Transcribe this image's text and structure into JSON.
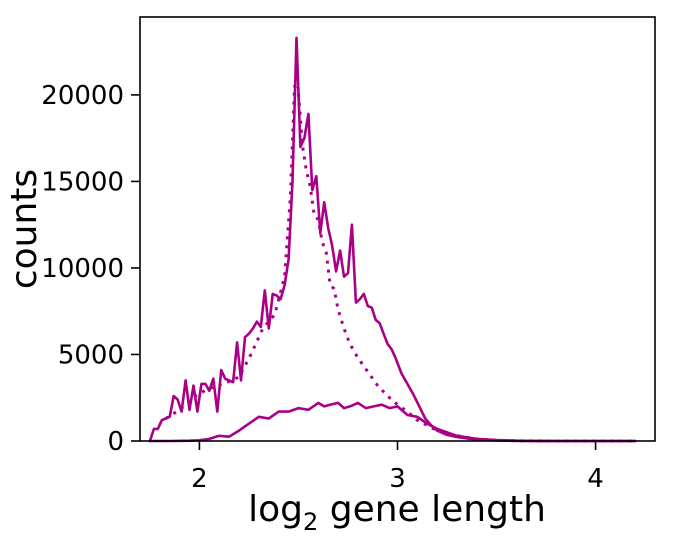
{
  "chart_data": {
    "type": "line",
    "title": "",
    "xlabel": {
      "main": "log",
      "sub": "2",
      "rest": " gene length"
    },
    "ylabel": "counts",
    "xlim": [
      1.7,
      4.3
    ],
    "ylim": [
      0,
      24500
    ],
    "xticks": [
      2,
      3,
      4
    ],
    "yticks": [
      0,
      5000,
      10000,
      15000,
      20000
    ],
    "grid": false,
    "legend": "none",
    "color": "#aa0088",
    "series": [
      {
        "style": "solid",
        "x": [
          1.75,
          1.77,
          1.79,
          1.81,
          1.83,
          1.85,
          1.87,
          1.89,
          1.91,
          1.93,
          1.95,
          1.97,
          1.99,
          2.01,
          2.03,
          2.05,
          2.07,
          2.09,
          2.11,
          2.13,
          2.15,
          2.17,
          2.19,
          2.21,
          2.23,
          2.25,
          2.27,
          2.29,
          2.31,
          2.33,
          2.35,
          2.37,
          2.39,
          2.41,
          2.43,
          2.45,
          2.47,
          2.49,
          2.51,
          2.53,
          2.55,
          2.57,
          2.59,
          2.61,
          2.63,
          2.65,
          2.67,
          2.69,
          2.71,
          2.73,
          2.75,
          2.77,
          2.79,
          2.81,
          2.83,
          2.85,
          2.87,
          2.89,
          2.91,
          2.93,
          2.95,
          2.97,
          2.99,
          3.02,
          3.05,
          3.08,
          3.11,
          3.14,
          3.17,
          3.2,
          3.25,
          3.3,
          3.35,
          3.4,
          3.45,
          3.5,
          3.6,
          3.7,
          3.8,
          4.0,
          4.2
        ],
        "y": [
          0,
          700,
          700,
          1200,
          1300,
          1400,
          2600,
          2400,
          1700,
          3500,
          1800,
          3200,
          1700,
          3300,
          3300,
          2900,
          3600,
          1700,
          4100,
          3600,
          3500,
          3400,
          5700,
          3500,
          6000,
          6200,
          6500,
          6900,
          6600,
          8700,
          6500,
          8500,
          8400,
          8200,
          9000,
          10500,
          15000,
          23300,
          17000,
          17500,
          18900,
          14500,
          15300,
          12000,
          13800,
          12300,
          11300,
          9800,
          11000,
          9500,
          9700,
          12500,
          8000,
          8200,
          8500,
          7800,
          7700,
          7000,
          6800,
          6200,
          5600,
          5300,
          4800,
          3900,
          3300,
          2700,
          2000,
          1300,
          900,
          600,
          350,
          230,
          150,
          90,
          50,
          30,
          10,
          5,
          2,
          0,
          0
        ]
      },
      {
        "style": "dotted",
        "x": [
          1.83,
          1.9,
          1.98,
          2.04,
          2.12,
          2.2,
          2.26,
          2.32,
          2.38,
          2.43,
          2.46,
          2.48,
          2.5,
          2.52,
          2.54,
          2.56,
          2.58,
          2.6,
          2.62,
          2.64,
          2.66,
          2.68,
          2.7,
          2.73,
          2.76,
          2.8,
          2.85,
          2.9,
          2.95,
          3.0,
          3.05,
          3.1,
          3.15,
          3.2,
          3.3,
          3.4,
          3.5,
          3.6,
          3.7,
          3.8,
          4.0,
          4.2
        ],
        "y": [
          1300,
          1800,
          2600,
          3000,
          3300,
          3700,
          5000,
          6500,
          7300,
          9500,
          14200,
          20500,
          20100,
          17100,
          15600,
          14700,
          13000,
          12800,
          11500,
          10900,
          9000,
          8800,
          7600,
          6500,
          5600,
          4800,
          4000,
          3200,
          2600,
          2100,
          1700,
          1200,
          900,
          600,
          300,
          120,
          40,
          10,
          3,
          1,
          0,
          0
        ]
      },
      {
        "style": "solid",
        "x": [
          1.75,
          1.85,
          1.95,
          2.0,
          2.05,
          2.1,
          2.15,
          2.2,
          2.25,
          2.3,
          2.35,
          2.4,
          2.45,
          2.5,
          2.55,
          2.6,
          2.63,
          2.66,
          2.7,
          2.73,
          2.76,
          2.8,
          2.84,
          2.88,
          2.92,
          2.96,
          3.0,
          3.05,
          3.1,
          3.15,
          3.2,
          3.3,
          3.4,
          3.5,
          3.6,
          3.7,
          3.8,
          4.0,
          4.2
        ],
        "y": [
          0,
          0,
          20,
          40,
          120,
          300,
          250,
          600,
          1000,
          1400,
          1300,
          1700,
          1700,
          1900,
          1800,
          2200,
          2000,
          2100,
          2200,
          1900,
          2000,
          2200,
          1900,
          2000,
          2100,
          1900,
          2000,
          1500,
          1400,
          1000,
          700,
          300,
          120,
          50,
          20,
          5,
          2,
          0,
          0
        ]
      }
    ]
  }
}
